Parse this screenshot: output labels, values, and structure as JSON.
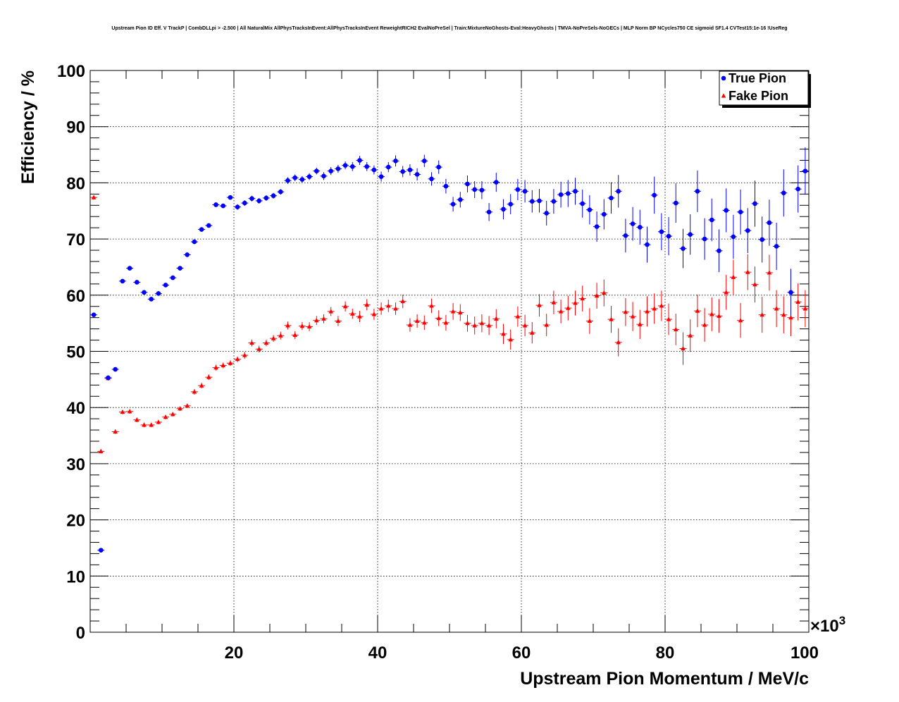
{
  "chart_data": {
    "type": "scatter",
    "title": "Upstream Pion ID Eff. V TrackP | CombDLLpi > -2.500 | All NaturalMix AllPhysTracksInEvent:AllPhysTracksInEvent ReweightRICH2 EvalNoPreSel | Train:MixtureNoGhosts-Eval:HeavyGhosts | TMVA-NoPreSels-NoGECs | MLP Norm BP NCycles750 CE sigmoid SF1.4 CVTest15:1e-16 !UseReg",
    "xlabel": "Upstream Pion Momentum / MeV/c",
    "ylabel": "Efficiency / %",
    "x_multiplier_label": "×10",
    "x_multiplier_exp": "3",
    "x_scale": 1000,
    "xlim": [
      0,
      100000
    ],
    "ylim": [
      0,
      100
    ],
    "x_ticks": [
      20000,
      40000,
      60000,
      80000,
      100000
    ],
    "x_tick_labels": [
      "20",
      "40",
      "60",
      "80",
      "100"
    ],
    "y_ticks": [
      0,
      10,
      20,
      30,
      40,
      50,
      60,
      70,
      80,
      90,
      100
    ],
    "y_tick_labels": [
      "0",
      "10",
      "20",
      "30",
      "40",
      "50",
      "60",
      "70",
      "80",
      "90",
      "100"
    ],
    "grid": true,
    "legend_position": "top-right",
    "x": [
      500,
      1500,
      2500,
      3500,
      4500,
      5500,
      6500,
      7500,
      8500,
      9500,
      10500,
      11500,
      12500,
      13500,
      14500,
      15500,
      16500,
      17500,
      18500,
      19500,
      20500,
      21500,
      22500,
      23500,
      24500,
      25500,
      26500,
      27500,
      28500,
      29500,
      30500,
      31500,
      32500,
      33500,
      34500,
      35500,
      36500,
      37500,
      38500,
      39500,
      40500,
      41500,
      42500,
      43500,
      44500,
      45500,
      46500,
      47500,
      48500,
      49500,
      50500,
      51500,
      52500,
      53500,
      54500,
      55500,
      56500,
      57500,
      58500,
      59500,
      60500,
      61500,
      62500,
      63500,
      64500,
      65500,
      66500,
      67500,
      68500,
      69500,
      70500,
      71500,
      72500,
      73500,
      74500,
      75500,
      76500,
      77500,
      78500,
      79500,
      80500,
      81500,
      82500,
      83500,
      84500,
      85500,
      86500,
      87500,
      88500,
      89500,
      90500,
      91500,
      92500,
      93500,
      94500,
      95500,
      96500,
      97500,
      98500,
      99500
    ],
    "series": [
      {
        "name": "True Pion",
        "color": "#0000ff",
        "marker": "circle",
        "values": [
          56.5,
          14.6,
          45.3,
          46.8,
          62.5,
          64.8,
          62.3,
          60.5,
          59.3,
          60.3,
          61.8,
          63.1,
          64.8,
          67.2,
          69.5,
          71.7,
          72.4,
          76.1,
          75.9,
          77.4,
          75.7,
          76.4,
          77.2,
          76.8,
          77.3,
          77.7,
          78.4,
          80.4,
          80.9,
          80.6,
          81.1,
          82.1,
          81.2,
          82.1,
          82.5,
          83.1,
          82.9,
          84.0,
          82.9,
          82.3,
          81.1,
          82.8,
          83.9,
          82.0,
          82.3,
          81.5,
          83.9,
          80.7,
          82.8,
          79.4,
          76.2,
          77.0,
          79.8,
          78.8,
          78.7,
          74.8,
          80.1,
          75.3,
          76.2,
          78.8,
          78.5,
          76.7,
          76.8,
          74.6,
          76.7,
          77.9,
          78.1,
          78.5,
          76.3,
          75.2,
          72.2,
          74.4,
          77.3,
          78.5,
          70.6,
          72.7,
          72.1,
          69.0,
          77.8,
          71.3,
          70.5,
          76.4,
          68.3,
          70.8,
          78.5,
          70.0,
          73.4,
          67.9,
          75.1,
          70.4,
          74.8,
          71.5,
          76.3,
          69.9,
          72.9,
          68.7,
          78.2,
          60.5,
          78.9,
          82.1
        ],
        "errors": [
          0.4,
          0.4,
          0.4,
          0.4,
          0.4,
          0.4,
          0.4,
          0.4,
          0.4,
          0.4,
          0.4,
          0.4,
          0.4,
          0.4,
          0.4,
          0.4,
          0.4,
          0.4,
          0.4,
          0.4,
          0.5,
          0.5,
          0.5,
          0.5,
          0.5,
          0.5,
          0.5,
          0.6,
          0.6,
          0.6,
          0.6,
          0.6,
          0.7,
          0.7,
          0.7,
          0.7,
          0.8,
          0.8,
          0.8,
          0.8,
          0.9,
          0.9,
          1.0,
          1.0,
          1.0,
          1.1,
          1.1,
          1.2,
          1.2,
          1.3,
          1.3,
          1.4,
          1.5,
          1.5,
          1.6,
          1.6,
          1.7,
          1.8,
          1.8,
          1.9,
          2.0,
          2.0,
          2.1,
          2.2,
          2.2,
          2.3,
          2.4,
          2.4,
          2.5,
          2.6,
          2.7,
          2.7,
          2.8,
          2.9,
          3.0,
          3.0,
          3.1,
          3.2,
          3.3,
          3.3,
          3.4,
          3.5,
          3.5,
          3.6,
          3.7,
          3.7,
          3.8,
          3.8,
          3.9,
          3.9,
          4.0,
          4.0,
          4.1,
          4.1,
          4.1,
          4.2,
          4.2,
          4.2,
          4.2,
          4.2
        ]
      },
      {
        "name": "Fake Pion",
        "color": "#ff0000",
        "marker": "triangle",
        "values": [
          77.4,
          32.2,
          45.2,
          35.7,
          39.2,
          39.3,
          37.8,
          36.9,
          36.9,
          37.4,
          38.3,
          38.8,
          39.8,
          40.3,
          42.8,
          43.9,
          45.4,
          47.1,
          47.5,
          47.9,
          48.6,
          49.3,
          51.5,
          50.4,
          51.5,
          52.3,
          52.8,
          54.6,
          52.9,
          54.5,
          54.4,
          55.5,
          55.8,
          57.1,
          55.4,
          58.0,
          56.7,
          56.2,
          58.3,
          56.6,
          57.6,
          58.1,
          57.6,
          58.9,
          54.7,
          55.4,
          55.1,
          58.1,
          55.9,
          55.1,
          57.1,
          56.9,
          55.0,
          54.6,
          55.0,
          54.6,
          55.8,
          53.1,
          52.1,
          56.2,
          54.6,
          53.3,
          58.2,
          54.7,
          58.7,
          57.1,
          57.7,
          58.6,
          59.4,
          55.4,
          59.9,
          60.4,
          55.7,
          51.6,
          57.0,
          56.2,
          54.8,
          57.1,
          57.6,
          58.1,
          55.7,
          53.9,
          50.5,
          52.8,
          57.2,
          54.7,
          56.6,
          56.3,
          60.5,
          63.2,
          55.5,
          64.1,
          61.9,
          56.5,
          64.0,
          57.6,
          56.5,
          56.0,
          58.8,
          57.6
        ],
        "errors": [
          0.4,
          0.4,
          0.4,
          0.4,
          0.4,
          0.4,
          0.4,
          0.4,
          0.4,
          0.4,
          0.4,
          0.4,
          0.4,
          0.4,
          0.5,
          0.5,
          0.5,
          0.5,
          0.5,
          0.5,
          0.5,
          0.6,
          0.6,
          0.6,
          0.6,
          0.6,
          0.7,
          0.7,
          0.7,
          0.7,
          0.8,
          0.8,
          0.8,
          0.8,
          0.9,
          0.9,
          0.9,
          1.0,
          1.0,
          1.0,
          1.1,
          1.1,
          1.1,
          1.2,
          1.2,
          1.2,
          1.3,
          1.3,
          1.4,
          1.4,
          1.5,
          1.5,
          1.5,
          1.6,
          1.6,
          1.7,
          1.7,
          1.8,
          1.8,
          1.8,
          1.9,
          1.9,
          2.0,
          2.0,
          2.1,
          2.1,
          2.2,
          2.2,
          2.3,
          2.3,
          2.3,
          2.4,
          2.4,
          2.5,
          2.5,
          2.6,
          2.6,
          2.7,
          2.7,
          2.7,
          2.8,
          2.8,
          2.9,
          2.9,
          2.9,
          3.0,
          3.0,
          3.0,
          3.1,
          3.1,
          3.1,
          3.2,
          3.2,
          3.2,
          3.2,
          3.3,
          3.3,
          3.3,
          3.3,
          3.3
        ]
      }
    ]
  }
}
